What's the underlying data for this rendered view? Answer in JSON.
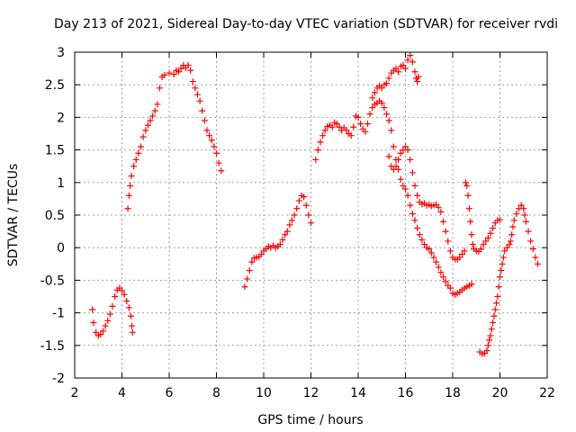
{
  "chart_data": {
    "type": "scatter",
    "title": "Day 213 of 2021, Sidereal Day-to-day VTEC variation (SDTVAR) for receiver rvdi",
    "xlabel": "GPS time / hours",
    "ylabel": "SDTVAR / TECUs",
    "xlim": [
      2,
      22
    ],
    "ylim": [
      -2,
      3
    ],
    "xticks": [
      "2",
      "4",
      "6",
      "8",
      "10",
      "12",
      "14",
      "16",
      "18",
      "20",
      "22"
    ],
    "yticks": [
      "-2",
      "-1.5",
      "-1",
      "-0.5",
      "0",
      "0.5",
      "1",
      "1.5",
      "2",
      "2.5",
      "3"
    ],
    "grid": true,
    "marker": "+",
    "color": "#ff0000",
    "series": [
      {
        "points": [
          [
            2.75,
            -0.95
          ],
          [
            2.8,
            -1.15
          ],
          [
            2.9,
            -1.3
          ],
          [
            3.0,
            -1.35
          ],
          [
            3.1,
            -1.33
          ],
          [
            3.2,
            -1.28
          ],
          [
            3.3,
            -1.2
          ],
          [
            3.4,
            -1.12
          ],
          [
            3.5,
            -1.02
          ],
          [
            3.6,
            -0.9
          ],
          [
            3.7,
            -0.75
          ],
          [
            3.8,
            -0.65
          ],
          [
            3.9,
            -0.62
          ],
          [
            4.0,
            -0.66
          ],
          [
            4.1,
            -0.72
          ],
          [
            4.2,
            -0.82
          ],
          [
            4.3,
            -0.92
          ],
          [
            4.38,
            -1.05
          ],
          [
            4.42,
            -1.2
          ],
          [
            4.45,
            -1.3
          ],
          [
            4.25,
            0.6
          ],
          [
            4.3,
            0.8
          ],
          [
            4.35,
            0.95
          ],
          [
            4.4,
            1.1
          ],
          [
            4.5,
            1.25
          ],
          [
            4.6,
            1.35
          ],
          [
            4.7,
            1.45
          ],
          [
            4.8,
            1.55
          ],
          [
            4.9,
            1.7
          ],
          [
            5.0,
            1.8
          ],
          [
            5.1,
            1.88
          ],
          [
            5.2,
            1.95
          ],
          [
            5.3,
            2.02
          ],
          [
            5.4,
            2.1
          ],
          [
            5.5,
            2.2
          ],
          [
            5.6,
            2.45
          ],
          [
            5.7,
            2.62
          ],
          [
            5.8,
            2.65
          ],
          [
            6.0,
            2.68
          ],
          [
            6.2,
            2.66
          ],
          [
            6.3,
            2.72
          ],
          [
            6.4,
            2.7
          ],
          [
            6.5,
            2.75
          ],
          [
            6.6,
            2.8
          ],
          [
            6.7,
            2.76
          ],
          [
            6.8,
            2.8
          ],
          [
            6.9,
            2.72
          ],
          [
            7.0,
            2.55
          ],
          [
            7.1,
            2.45
          ],
          [
            7.2,
            2.35
          ],
          [
            7.3,
            2.25
          ],
          [
            7.4,
            2.1
          ],
          [
            7.5,
            1.95
          ],
          [
            7.6,
            1.8
          ],
          [
            7.7,
            1.72
          ],
          [
            7.8,
            1.65
          ],
          [
            7.9,
            1.55
          ],
          [
            8.0,
            1.45
          ],
          [
            8.1,
            1.3
          ],
          [
            8.2,
            1.18
          ],
          [
            9.2,
            -0.6
          ],
          [
            9.3,
            -0.48
          ],
          [
            9.4,
            -0.35
          ],
          [
            9.5,
            -0.22
          ],
          [
            9.6,
            -0.16
          ],
          [
            9.7,
            -0.15
          ],
          [
            9.8,
            -0.14
          ],
          [
            9.9,
            -0.1
          ],
          [
            10.0,
            -0.05
          ],
          [
            10.1,
            -0.02
          ],
          [
            10.2,
            0.02
          ],
          [
            10.3,
            0.0
          ],
          [
            10.4,
            0.03
          ],
          [
            10.5,
            0.0
          ],
          [
            10.6,
            0.02
          ],
          [
            10.7,
            0.05
          ],
          [
            10.8,
            0.12
          ],
          [
            10.9,
            0.2
          ],
          [
            11.0,
            0.25
          ],
          [
            11.1,
            0.35
          ],
          [
            11.2,
            0.42
          ],
          [
            11.3,
            0.5
          ],
          [
            11.4,
            0.6
          ],
          [
            11.5,
            0.72
          ],
          [
            11.6,
            0.8
          ],
          [
            11.7,
            0.78
          ],
          [
            11.8,
            0.65
          ],
          [
            11.9,
            0.5
          ],
          [
            12.0,
            0.38
          ],
          [
            12.2,
            1.35
          ],
          [
            12.3,
            1.5
          ],
          [
            12.4,
            1.62
          ],
          [
            12.5,
            1.72
          ],
          [
            12.6,
            1.8
          ],
          [
            12.7,
            1.86
          ],
          [
            12.8,
            1.88
          ],
          [
            12.9,
            1.85
          ],
          [
            13.0,
            1.92
          ],
          [
            13.1,
            1.9
          ],
          [
            13.2,
            1.85
          ],
          [
            13.3,
            1.8
          ],
          [
            13.4,
            1.84
          ],
          [
            13.5,
            1.8
          ],
          [
            13.6,
            1.75
          ],
          [
            13.7,
            1.72
          ],
          [
            13.8,
            1.85
          ],
          [
            13.9,
            2.02
          ],
          [
            14.0,
            2.0
          ],
          [
            14.1,
            1.9
          ],
          [
            14.2,
            1.82
          ],
          [
            14.3,
            1.78
          ],
          [
            14.4,
            1.9
          ],
          [
            14.5,
            2.05
          ],
          [
            14.6,
            2.15
          ],
          [
            14.7,
            2.2
          ],
          [
            14.8,
            2.22
          ],
          [
            14.9,
            2.25
          ],
          [
            15.0,
            2.22
          ],
          [
            15.1,
            2.15
          ],
          [
            15.2,
            2.05
          ],
          [
            15.3,
            1.95
          ],
          [
            15.4,
            1.8
          ],
          [
            15.5,
            1.55
          ],
          [
            15.6,
            1.35
          ],
          [
            15.7,
            1.2
          ],
          [
            15.8,
            1.05
          ],
          [
            15.9,
            0.95
          ],
          [
            16.0,
            0.9
          ],
          [
            16.1,
            0.8
          ],
          [
            16.2,
            0.65
          ],
          [
            16.3,
            0.52
          ],
          [
            16.4,
            0.42
          ],
          [
            16.5,
            0.3
          ],
          [
            16.6,
            0.2
          ],
          [
            16.7,
            0.12
          ],
          [
            16.8,
            0.05
          ],
          [
            16.9,
            0.0
          ],
          [
            17.0,
            -0.02
          ],
          [
            17.1,
            -0.08
          ],
          [
            17.2,
            -0.15
          ],
          [
            17.3,
            -0.22
          ],
          [
            17.4,
            -0.3
          ],
          [
            17.5,
            -0.38
          ],
          [
            17.6,
            -0.45
          ],
          [
            17.7,
            -0.52
          ],
          [
            17.8,
            -0.58
          ],
          [
            17.9,
            -0.62
          ],
          [
            18.0,
            -0.7
          ],
          [
            18.1,
            -0.72
          ],
          [
            18.2,
            -0.7
          ],
          [
            18.3,
            -0.68
          ],
          [
            18.4,
            -0.65
          ],
          [
            18.5,
            -0.62
          ],
          [
            18.6,
            -0.6
          ],
          [
            18.7,
            -0.58
          ],
          [
            18.8,
            -0.56
          ],
          [
            14.6,
            2.3
          ],
          [
            14.7,
            2.38
          ],
          [
            14.8,
            2.45
          ],
          [
            14.9,
            2.48
          ],
          [
            15.0,
            2.45
          ],
          [
            15.1,
            2.5
          ],
          [
            15.2,
            2.52
          ],
          [
            15.3,
            2.6
          ],
          [
            15.4,
            2.68
          ],
          [
            15.5,
            2.72
          ],
          [
            15.6,
            2.75
          ],
          [
            15.7,
            2.7
          ],
          [
            15.8,
            2.78
          ],
          [
            15.9,
            2.8
          ],
          [
            16.0,
            2.75
          ],
          [
            16.1,
            2.88
          ],
          [
            16.2,
            2.95
          ],
          [
            16.3,
            2.85
          ],
          [
            16.4,
            2.7
          ],
          [
            16.45,
            2.6
          ],
          [
            16.5,
            2.55
          ],
          [
            16.55,
            2.62
          ],
          [
            15.3,
            1.4
          ],
          [
            15.4,
            1.25
          ],
          [
            15.5,
            1.2
          ],
          [
            15.6,
            1.25
          ],
          [
            15.7,
            1.35
          ],
          [
            15.8,
            1.45
          ],
          [
            15.9,
            1.5
          ],
          [
            16.0,
            1.55
          ],
          [
            16.1,
            1.5
          ],
          [
            16.2,
            1.35
          ],
          [
            16.3,
            1.15
          ],
          [
            16.4,
            0.95
          ],
          [
            16.5,
            0.8
          ],
          [
            16.6,
            0.7
          ],
          [
            16.7,
            0.67
          ],
          [
            16.8,
            0.68
          ],
          [
            16.9,
            0.65
          ],
          [
            17.0,
            0.66
          ],
          [
            17.1,
            0.64
          ],
          [
            17.2,
            0.65
          ],
          [
            17.3,
            0.66
          ],
          [
            17.4,
            0.62
          ],
          [
            17.5,
            0.55
          ],
          [
            17.6,
            0.4
          ],
          [
            17.7,
            0.25
          ],
          [
            17.8,
            0.1
          ],
          [
            17.9,
            -0.05
          ],
          [
            18.0,
            -0.15
          ],
          [
            18.1,
            -0.18
          ],
          [
            18.2,
            -0.18
          ],
          [
            18.3,
            -0.15
          ],
          [
            18.4,
            -0.1
          ],
          [
            18.5,
            -0.05
          ],
          [
            18.55,
            1.0
          ],
          [
            18.6,
            0.95
          ],
          [
            18.65,
            0.8
          ],
          [
            18.7,
            0.6
          ],
          [
            18.75,
            0.4
          ],
          [
            18.8,
            0.2
          ],
          [
            18.85,
            0.05
          ],
          [
            18.9,
            -0.02
          ],
          [
            19.0,
            -0.05
          ],
          [
            19.1,
            -0.06
          ],
          [
            19.2,
            -0.02
          ],
          [
            19.3,
            0.05
          ],
          [
            19.4,
            0.1
          ],
          [
            19.5,
            0.15
          ],
          [
            19.6,
            0.22
          ],
          [
            19.7,
            0.3
          ],
          [
            19.8,
            0.38
          ],
          [
            19.9,
            0.42
          ],
          [
            20.0,
            0.43
          ],
          [
            19.15,
            -1.6
          ],
          [
            19.25,
            -1.63
          ],
          [
            19.35,
            -1.62
          ],
          [
            19.45,
            -1.58
          ],
          [
            19.5,
            -1.5
          ],
          [
            19.55,
            -1.42
          ],
          [
            19.6,
            -1.35
          ],
          [
            19.65,
            -1.25
          ],
          [
            19.7,
            -1.15
          ],
          [
            19.75,
            -1.05
          ],
          [
            19.8,
            -0.95
          ],
          [
            19.85,
            -0.85
          ],
          [
            19.9,
            -0.75
          ],
          [
            19.95,
            -0.6
          ],
          [
            20.0,
            -0.45
          ],
          [
            20.05,
            -0.35
          ],
          [
            20.1,
            -0.25
          ],
          [
            20.15,
            -0.15
          ],
          [
            20.2,
            -0.05
          ],
          [
            20.3,
            0.0
          ],
          [
            20.4,
            0.05
          ],
          [
            20.45,
            0.1
          ],
          [
            20.5,
            0.2
          ],
          [
            20.55,
            0.32
          ],
          [
            20.6,
            0.42
          ],
          [
            20.7,
            0.52
          ],
          [
            20.8,
            0.6
          ],
          [
            20.9,
            0.65
          ],
          [
            21.0,
            0.6
          ],
          [
            21.05,
            0.5
          ],
          [
            21.1,
            0.4
          ],
          [
            21.2,
            0.25
          ],
          [
            21.3,
            0.1
          ],
          [
            21.4,
            -0.02
          ],
          [
            21.5,
            -0.15
          ],
          [
            21.6,
            -0.25
          ]
        ]
      }
    ]
  }
}
